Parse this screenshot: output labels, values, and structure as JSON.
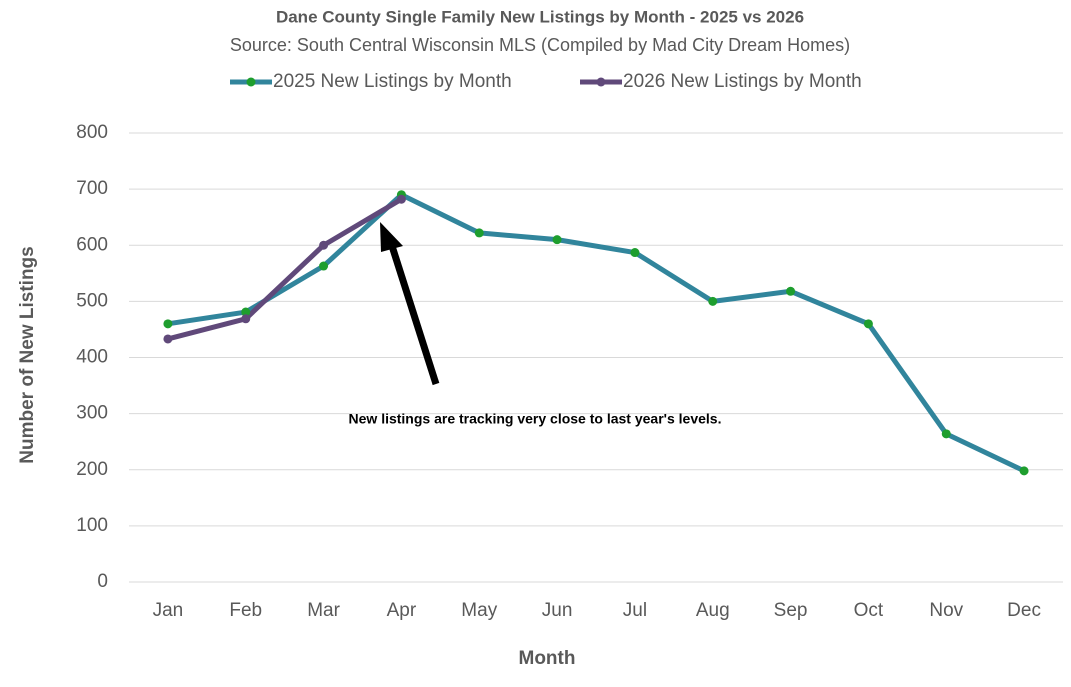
{
  "chart_data": {
    "type": "line",
    "title": "Dane County Single Family New Listings by Month - 2025 vs 2026",
    "subtitle": "Source: South Central Wisconsin MLS (Compiled by Mad City Dream Homes)",
    "x_label": "Month",
    "y_label": "Number of New Listings",
    "annotation": "New listings are tracking very close to last year's levels.",
    "categories": [
      "Jan",
      "Feb",
      "Mar",
      "Apr",
      "May",
      "Jun",
      "Jul",
      "Aug",
      "Sep",
      "Oct",
      "Nov",
      "Dec"
    ],
    "series": [
      {
        "name": "2025 New Listings by Month",
        "color": "#31859c",
        "marker_color": "#1e9e2e",
        "values": [
          460,
          481,
          563,
          690,
          622,
          610,
          587,
          500,
          518,
          460,
          264,
          198
        ]
      },
      {
        "name": "2026 New Listings by Month",
        "color": "#60497a",
        "marker_color": "#60497a",
        "values": [
          433,
          469,
          600,
          682,
          null,
          null,
          null,
          null,
          null,
          null,
          null,
          null
        ]
      }
    ],
    "ylim": [
      0,
      800
    ],
    "yticks": [
      0,
      100,
      200,
      300,
      400,
      500,
      600,
      700,
      800
    ],
    "grid": true,
    "legend": "top"
  }
}
